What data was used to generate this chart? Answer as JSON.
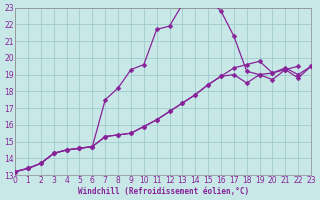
{
  "bg_color": "#c8e8e8",
  "grid_color": "#a0cccc",
  "line_color": "#882299",
  "xlim": [
    0,
    23
  ],
  "ylim": [
    13,
    23
  ],
  "xticks": [
    0,
    1,
    2,
    3,
    4,
    5,
    6,
    7,
    8,
    9,
    10,
    11,
    12,
    13,
    14,
    15,
    16,
    17,
    18,
    19,
    20,
    21,
    22,
    23
  ],
  "yticks": [
    13,
    14,
    15,
    16,
    17,
    18,
    19,
    20,
    21,
    22,
    23
  ],
  "xlabel": "Windchill (Refroidissement éolien,°C)",
  "series": [
    {
      "x": [
        0,
        1,
        2,
        3,
        4,
        5,
        6,
        7,
        8,
        9,
        10,
        11,
        12,
        13,
        14,
        15,
        16,
        17,
        18,
        19,
        20,
        21,
        22
      ],
      "y": [
        13.2,
        13.4,
        13.7,
        14.3,
        14.5,
        14.6,
        14.7,
        17.5,
        18.2,
        19.3,
        19.6,
        21.7,
        21.9,
        23.2,
        23.4,
        23.5,
        22.8,
        21.3,
        19.2,
        19.0,
        18.7,
        19.3,
        19.5
      ]
    },
    {
      "x": [
        0,
        1,
        2,
        3,
        4,
        5,
        6,
        7,
        8,
        9,
        10,
        11,
        12,
        13,
        14,
        15,
        16,
        17,
        18,
        19,
        20,
        21,
        22,
        23
      ],
      "y": [
        13.2,
        13.4,
        13.7,
        14.3,
        14.5,
        14.6,
        14.7,
        15.3,
        15.4,
        15.5,
        15.9,
        16.3,
        16.8,
        17.3,
        17.8,
        18.4,
        18.9,
        19.4,
        19.6,
        19.8,
        19.1,
        19.4,
        19.0,
        19.5
      ]
    },
    {
      "x": [
        0,
        1,
        2,
        3,
        4,
        5,
        6,
        7,
        8,
        9,
        10,
        11,
        12,
        13,
        14,
        15,
        16,
        17,
        18,
        19,
        20,
        21,
        22,
        23
      ],
      "y": [
        13.2,
        13.4,
        13.7,
        14.3,
        14.5,
        14.6,
        14.7,
        15.3,
        15.4,
        15.5,
        15.9,
        16.3,
        16.8,
        17.3,
        17.8,
        18.4,
        18.9,
        19.0,
        18.5,
        19.0,
        19.1,
        19.3,
        18.8,
        19.5
      ]
    }
  ],
  "figsize": [
    3.2,
    2.0
  ],
  "dpi": 100,
  "tick_fontsize": 5.5,
  "xlabel_fontsize": 5.5,
  "linewidth": 0.9,
  "markersize": 2.5
}
